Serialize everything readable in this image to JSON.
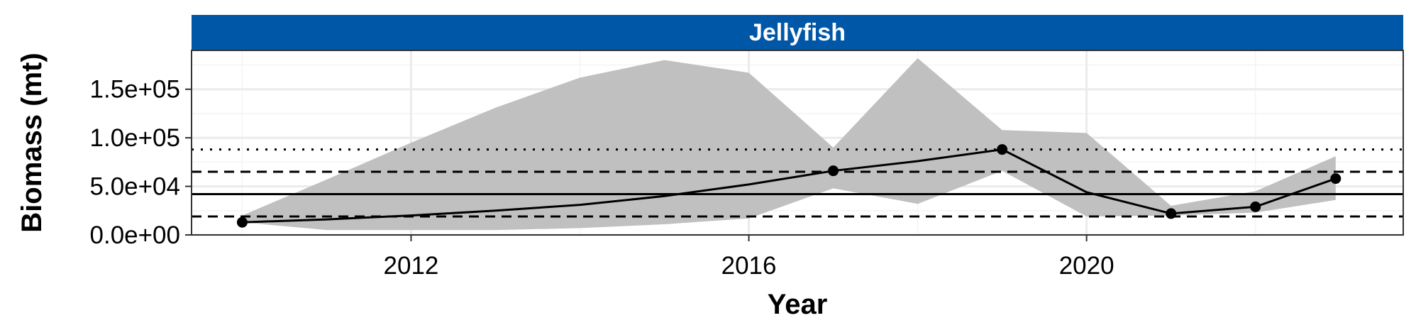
{
  "chart_data": {
    "type": "line",
    "panel_title": "Jellyfish",
    "xlabel": "Year",
    "ylabel": "Biomass (mt)",
    "xlim": [
      2009.4,
      2023.75
    ],
    "ylim": [
      0,
      190000
    ],
    "x_ticks": [
      2012,
      2016,
      2020
    ],
    "x_tick_labels": [
      "2012",
      "2016",
      "2020"
    ],
    "y_ticks": [
      0,
      50000,
      100000,
      150000
    ],
    "y_tick_labels": [
      "0.0e+00",
      "5.0e+04",
      "1.0e+05",
      "1.5e+05"
    ],
    "grid": true,
    "legend": "none",
    "series": [
      {
        "type": "line",
        "x": [
          2010,
          2011,
          2012,
          2013,
          2014,
          2015,
          2016,
          2017,
          2018,
          2019,
          2020,
          2021,
          2022,
          2022.95
        ],
        "y": [
          13000,
          16000,
          20000,
          25000,
          31000,
          40000,
          52000,
          66000,
          76000,
          88000,
          44000,
          22000,
          29000,
          58000
        ]
      },
      {
        "type": "points",
        "x": [
          2010,
          2017,
          2019,
          2021,
          2022,
          2022.95
        ],
        "y": [
          13000,
          66000,
          88000,
          22000,
          29000,
          58000
        ]
      }
    ],
    "ribbon": {
      "x": [
        2010,
        2011,
        2012,
        2013,
        2014,
        2015,
        2016,
        2017,
        2018,
        2019,
        2020,
        2021,
        2022,
        2022.95
      ],
      "upper": [
        20000,
        57000,
        95000,
        131000,
        162000,
        180000,
        167000,
        90000,
        182000,
        108000,
        105000,
        30000,
        45000,
        81000
      ],
      "lower": [
        13000,
        5000,
        5000,
        5000,
        7000,
        11000,
        17000,
        48000,
        32000,
        66000,
        19000,
        20000,
        23000,
        36000
      ]
    },
    "reference_lines": [
      {
        "y": 42000,
        "style": "solid"
      },
      {
        "y": 19000,
        "style": "dashed"
      },
      {
        "y": 65000,
        "style": "dashed"
      },
      {
        "y": 88000,
        "style": "dotted"
      }
    ],
    "colors": {
      "strip": "#0057A8",
      "ribbon": "#C0C0C0",
      "line": "#000000",
      "grid_major": "#EBEBEB",
      "grid_minor": "#F4F4F4"
    }
  }
}
